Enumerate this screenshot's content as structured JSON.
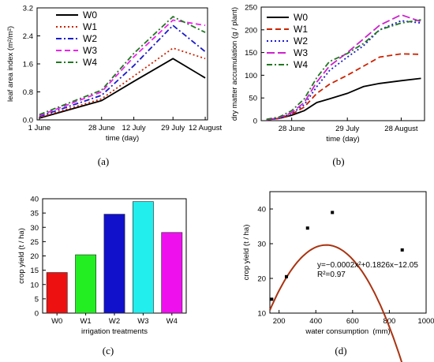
{
  "chart_data": [
    {
      "panel_label": "(a)",
      "type": "line",
      "x_dates": [
        "2014-06-01",
        "2014-06-28",
        "2014-07-12",
        "2014-07-29",
        "2014-08-12"
      ],
      "x_tick_labels": [
        "1 June",
        "28 June",
        "12 July",
        "29 July",
        "12 August"
      ],
      "xlabel": "time (day)",
      "ylabel": "leaf area index (m²/m²)",
      "ylim": [
        0,
        3.2
      ],
      "yticks": [
        0.0,
        0.8,
        1.6,
        2.4,
        3.2
      ],
      "ytick_labels": [
        "0.0",
        "0.8",
        "1.6",
        "2.4",
        "3.2"
      ],
      "legend_position": "top-left",
      "series": [
        {
          "name": "W0",
          "color": "#000000",
          "dash": "solid",
          "values": [
            0.05,
            0.55,
            1.1,
            1.75,
            1.2
          ]
        },
        {
          "name": "W1",
          "color": "#cc2200",
          "dash": "dot",
          "values": [
            0.07,
            0.6,
            1.25,
            2.05,
            1.75
          ]
        },
        {
          "name": "W2",
          "color": "#1a1acc",
          "dash": "dashdot",
          "values": [
            0.1,
            0.7,
            1.55,
            2.7,
            1.95
          ]
        },
        {
          "name": "W3",
          "color": "#ee22ee",
          "dash": "dash",
          "values": [
            0.12,
            0.8,
            1.8,
            2.85,
            2.7
          ]
        },
        {
          "name": "W4",
          "color": "#227722",
          "dash": "dashdot",
          "values": [
            0.15,
            0.85,
            1.9,
            2.95,
            2.5
          ]
        }
      ]
    },
    {
      "panel_label": "(b)",
      "type": "line",
      "x_dates": [
        "2014-06-14",
        "2014-06-21",
        "2014-06-28",
        "2014-07-05",
        "2014-07-12",
        "2014-07-19",
        "2014-07-29",
        "2014-08-07",
        "2014-08-16",
        "2014-08-28",
        "2014-09-08"
      ],
      "x_tick_labels": [
        "28 June",
        "29 July",
        "28 August"
      ],
      "x_tick_dates": [
        "2014-06-28",
        "2014-07-29",
        "2014-08-28"
      ],
      "xlabel": "time (day)",
      "ylabel": "dry matter accumulation (g / plant)",
      "ylim": [
        0,
        250
      ],
      "yticks": [
        0,
        50,
        100,
        150,
        200,
        250
      ],
      "ytick_labels": [
        "0",
        "50",
        "100",
        "150",
        "200",
        "250"
      ],
      "legend_position": "top-left",
      "series": [
        {
          "name": "W0",
          "color": "#000000",
          "dash": "solid",
          "values": [
            2,
            5,
            12,
            22,
            40,
            48,
            60,
            75,
            82,
            88,
            93
          ]
        },
        {
          "name": "W1",
          "color": "#cc2200",
          "dash": "dash",
          "values": [
            2,
            5,
            14,
            30,
            60,
            80,
            100,
            120,
            140,
            147,
            146
          ]
        },
        {
          "name": "W2",
          "color": "#1a1acc",
          "dash": "dot",
          "values": [
            2,
            5,
            16,
            35,
            75,
            110,
            140,
            165,
            200,
            220,
            215
          ]
        },
        {
          "name": "W3",
          "color": "#cc22cc",
          "dash": "longdash",
          "values": [
            2,
            6,
            18,
            40,
            85,
            120,
            150,
            180,
            210,
            233,
            218
          ]
        },
        {
          "name": "W4",
          "color": "#227722",
          "dash": "dashdot",
          "values": [
            3,
            8,
            22,
            48,
            95,
            130,
            148,
            170,
            200,
            215,
            222
          ]
        }
      ]
    },
    {
      "panel_label": "(c)",
      "type": "bar",
      "categories": [
        "W0",
        "W1",
        "W2",
        "W3",
        "W4"
      ],
      "values": [
        14.2,
        20.4,
        34.6,
        39.0,
        28.2
      ],
      "colors": [
        "#ee1111",
        "#22ee22",
        "#1111cc",
        "#22eeee",
        "#ee11ee"
      ],
      "xlabel": "irrigation treatments",
      "ylabel": "crop yield (t / ha)",
      "ylim": [
        0,
        40
      ],
      "yticks": [
        0,
        5,
        10,
        15,
        20,
        25,
        30,
        35,
        40
      ],
      "ytick_labels": [
        "0",
        "5",
        "10",
        "15",
        "20",
        "25",
        "30",
        "35",
        "40"
      ]
    },
    {
      "panel_label": "(d)",
      "type": "scatter",
      "points": [
        {
          "x": 160,
          "y": 14.0
        },
        {
          "x": 240,
          "y": 20.5
        },
        {
          "x": 355,
          "y": 34.5
        },
        {
          "x": 490,
          "y": 39.0
        },
        {
          "x": 870,
          "y": 28.2
        }
      ],
      "fit": {
        "a": -0.0002,
        "b": 0.1826,
        "c": -12.05,
        "x_range": [
          150,
          880
        ],
        "color": "#aa3311"
      },
      "equation": "y=−0.0002x²+0.1826x−12.05",
      "r2": "R²=0.97",
      "xlabel": "water consumption  (mm)",
      "ylabel": "crop yield (t / ha)",
      "xlim": [
        150,
        1000
      ],
      "ylim": [
        10,
        45
      ],
      "xticks": [
        200,
        400,
        600,
        800,
        1000
      ],
      "yticks": [
        10,
        20,
        30,
        40
      ],
      "xtick_labels": [
        "200",
        "400",
        "600",
        "800",
        "1000"
      ],
      "ytick_labels": [
        "10",
        "20",
        "30",
        "40"
      ]
    }
  ]
}
